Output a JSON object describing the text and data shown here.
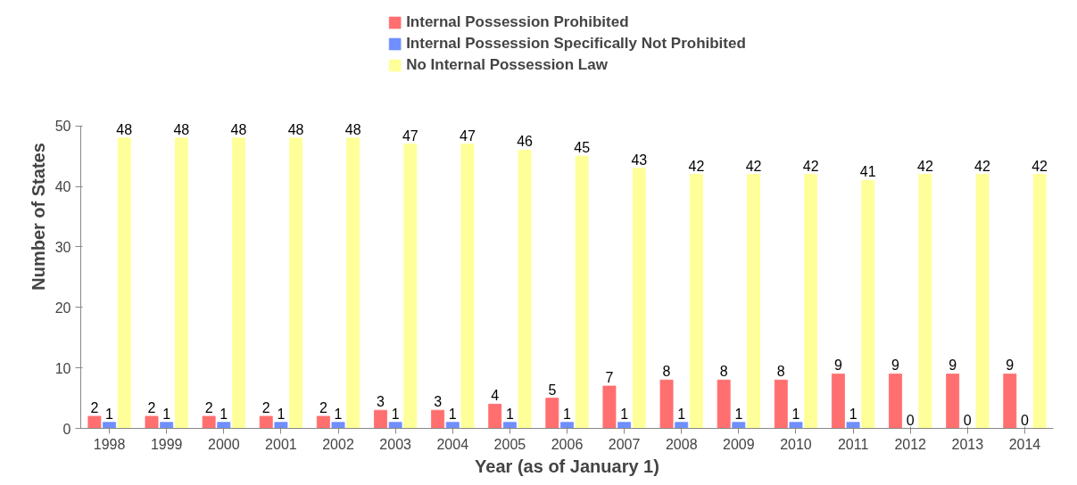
{
  "chart_data": {
    "type": "bar",
    "xlabel": "Year (as of January 1)",
    "ylabel": "Number of States",
    "categories": [
      "1998",
      "1999",
      "2000",
      "2001",
      "2002",
      "2003",
      "2004",
      "2005",
      "2006",
      "2007",
      "2008",
      "2009",
      "2010",
      "2011",
      "2012",
      "2013",
      "2014"
    ],
    "series": [
      {
        "name": "Internal Possession Prohibited",
        "color": "#ff6f6f",
        "values": [
          2,
          2,
          2,
          2,
          2,
          3,
          3,
          4,
          5,
          7,
          8,
          8,
          8,
          9,
          9,
          9,
          9
        ]
      },
      {
        "name": "Internal Possession Specifically Not Prohibited",
        "color": "#6f8fff",
        "values": [
          1,
          1,
          1,
          1,
          1,
          1,
          1,
          1,
          1,
          1,
          1,
          1,
          1,
          1,
          0,
          0,
          0
        ]
      },
      {
        "name": "No Internal Possession Law",
        "color": "#ffff99",
        "values": [
          48,
          48,
          48,
          48,
          48,
          47,
          47,
          46,
          45,
          43,
          42,
          42,
          42,
          41,
          42,
          42,
          42
        ]
      }
    ],
    "ylim": [
      0,
      50
    ],
    "yticks": [
      0,
      10,
      20,
      30,
      40,
      50
    ],
    "grid": false,
    "legend": "top",
    "data_labels": true
  }
}
